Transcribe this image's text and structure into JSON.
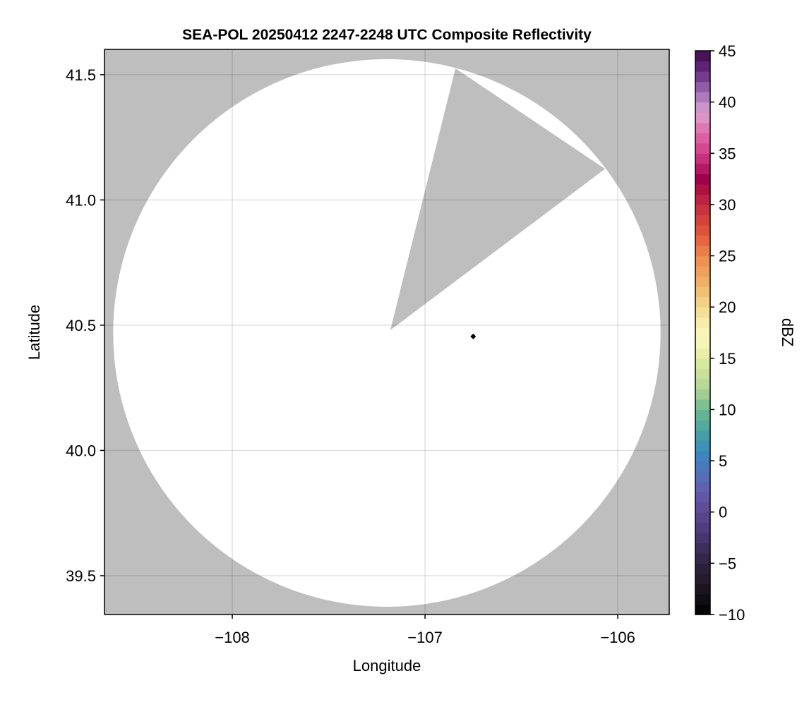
{
  "chart_data": {
    "type": "heatmap",
    "title": "SEA-POL 20250412 2247-2248 UTC Composite Reflectivity",
    "xlabel": "Longitude",
    "ylabel": "Latitude",
    "xlim": [
      -108.663,
      -105.733
    ],
    "ylim": [
      39.345,
      41.601
    ],
    "xticks": [
      -108,
      -107,
      -106
    ],
    "xtick_labels": [
      "−108",
      "−107",
      "−106"
    ],
    "yticks": [
      39.5,
      40.0,
      40.5,
      41.0,
      41.5
    ],
    "ytick_labels": [
      "39.5",
      "40.0",
      "40.5",
      "41.0",
      "41.5"
    ],
    "grid": true,
    "missing_color": "#bebebe",
    "coverage": {
      "center": [
        -107.198,
        40.469
      ],
      "radius_lon": 1.42,
      "radius_lat": 1.093,
      "fill": "#ffffff",
      "blocked_sector": [
        [
          -107.18,
          40.48
        ],
        [
          -106.842,
          41.525
        ],
        [
          -106.066,
          41.124
        ]
      ]
    },
    "marker": {
      "lon": -106.75,
      "lat": 40.455,
      "shape": "diamond",
      "color": "#000000"
    },
    "colorbar": {
      "label": "dBZ",
      "range": [
        -10,
        45
      ],
      "ticks": [
        -10,
        -5,
        0,
        5,
        10,
        15,
        20,
        25,
        30,
        35,
        40,
        45
      ],
      "tick_labels": [
        "−10",
        "−5",
        "0",
        "5",
        "10",
        "15",
        "20",
        "25",
        "30",
        "35",
        "40",
        "45"
      ],
      "bin_width": 1,
      "colormap_stops": [
        [
          -10,
          "#000000"
        ],
        [
          -8,
          "#151318"
        ],
        [
          -5,
          "#2e2440"
        ],
        [
          -2,
          "#4a3a78"
        ],
        [
          1,
          "#6650a0"
        ],
        [
          3,
          "#5a68b6"
        ],
        [
          6,
          "#3a8abf"
        ],
        [
          8,
          "#4aa5a0"
        ],
        [
          10,
          "#6fb890"
        ],
        [
          12,
          "#b0d494"
        ],
        [
          15,
          "#e2eca0"
        ],
        [
          17,
          "#fbf8c0"
        ],
        [
          19,
          "#f5e8a0"
        ],
        [
          22,
          "#efb86a"
        ],
        [
          25,
          "#ec8a50"
        ],
        [
          27,
          "#e25a3a"
        ],
        [
          30,
          "#c42a40"
        ],
        [
          32.5,
          "#a00048"
        ],
        [
          35,
          "#d03c8a"
        ],
        [
          37,
          "#e06aa8"
        ],
        [
          39,
          "#dda0d0"
        ],
        [
          41,
          "#9c6fb7"
        ],
        [
          43,
          "#6a2a80"
        ],
        [
          45,
          "#3f0a4f"
        ]
      ]
    }
  }
}
